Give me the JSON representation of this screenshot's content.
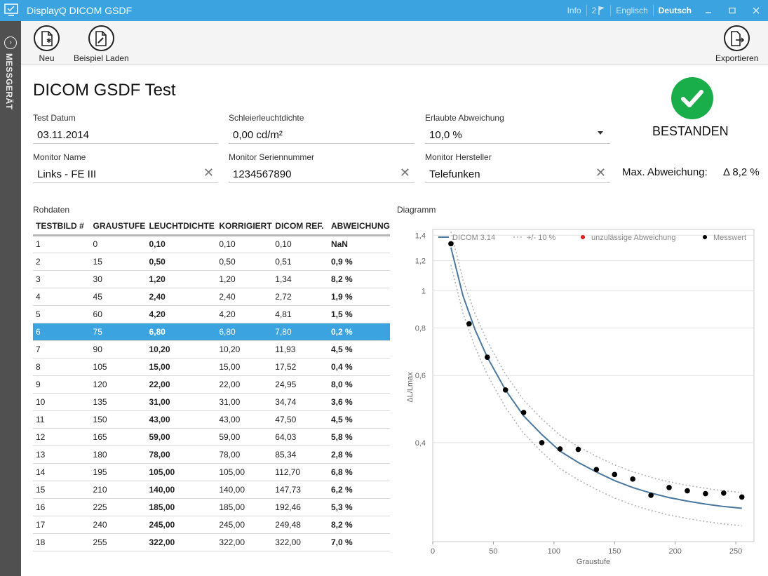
{
  "app": {
    "title": "DisplayQ DICOM GSDF",
    "links": {
      "info": "Info",
      "flag_count": "2",
      "lang_en": "Englisch",
      "lang_de": "Deutsch"
    }
  },
  "sidebar": {
    "label": "MESSGERÄT"
  },
  "toolbar": {
    "new_label": "Neu",
    "load_example_label": "Beispiel Laden",
    "export_label": "Exportieren"
  },
  "page": {
    "title": "DICOM GSDF Test"
  },
  "fields": {
    "test_date": {
      "label": "Test Datum",
      "value": "03.11.2014"
    },
    "veiling_luminance": {
      "label": "Schleierleuchtdichte",
      "value": "0,00 cd/m²"
    },
    "allowed_deviation": {
      "label": "Erlaubte Abweichung",
      "value": "10,0 %"
    },
    "monitor_name": {
      "label": "Monitor Name",
      "value": "Links - FE III"
    },
    "monitor_serial": {
      "label": "Monitor Seriennummer",
      "value": "1234567890"
    },
    "monitor_manufacturer": {
      "label": "Monitor Hersteller",
      "value": "Telefunken"
    }
  },
  "result": {
    "status": "BESTANDEN",
    "status_color": "#1aae4b",
    "max_dev_label": "Max. Abweichung:",
    "max_dev_value": "Δ 8,2 %"
  },
  "raw": {
    "section_label": "Rohdaten",
    "columns": [
      "TESTBILD #",
      "GRAUSTUFE",
      "LEUCHTDICHTE",
      "KORRIGIERT",
      "DICOM REF.",
      "ABWEICHUNG"
    ],
    "selected_row": 5,
    "rows": [
      [
        "1",
        "0",
        "0,10",
        "0,10",
        "0,10",
        "NaN"
      ],
      [
        "2",
        "15",
        "0,50",
        "0,50",
        "0,51",
        "0,9 %"
      ],
      [
        "3",
        "30",
        "1,20",
        "1,20",
        "1,34",
        "8,2 %"
      ],
      [
        "4",
        "45",
        "2,40",
        "2,40",
        "2,72",
        "1,9 %"
      ],
      [
        "5",
        "60",
        "4,20",
        "4,20",
        "4,81",
        "1,5 %"
      ],
      [
        "6",
        "75",
        "6,80",
        "6,80",
        "7,80",
        "0,2 %"
      ],
      [
        "7",
        "90",
        "10,20",
        "10,20",
        "11,93",
        "4,5 %"
      ],
      [
        "8",
        "105",
        "15,00",
        "15,00",
        "17,52",
        "0,4 %"
      ],
      [
        "9",
        "120",
        "22,00",
        "22,00",
        "24,95",
        "8,0 %"
      ],
      [
        "10",
        "135",
        "31,00",
        "31,00",
        "34,74",
        "3,6 %"
      ],
      [
        "11",
        "150",
        "43,00",
        "43,00",
        "47,50",
        "4,5 %"
      ],
      [
        "12",
        "165",
        "59,00",
        "59,00",
        "64,03",
        "5,8 %"
      ],
      [
        "13",
        "180",
        "78,00",
        "78,00",
        "85,34",
        "2,8 %"
      ],
      [
        "14",
        "195",
        "105,00",
        "105,00",
        "112,70",
        "6,8 %"
      ],
      [
        "15",
        "210",
        "140,00",
        "140,00",
        "147,73",
        "6,2 %"
      ],
      [
        "16",
        "225",
        "185,00",
        "185,00",
        "192,46",
        "5,3 %"
      ],
      [
        "17",
        "240",
        "245,00",
        "245,00",
        "249,48",
        "8,2 %"
      ],
      [
        "18",
        "255",
        "322,00",
        "322,00",
        "322,00",
        "7,0 %"
      ]
    ]
  },
  "diagram": {
    "section_label": "Diagramm"
  },
  "chart_data": {
    "type": "scatter",
    "xlabel": "Graustufe",
    "ylabel": "ΔL/Lmax",
    "xlim": [
      0,
      265
    ],
    "ylim": [
      0.22,
      1.45
    ],
    "y_scale": "log",
    "x_ticks": [
      "0",
      "50",
      "100",
      "150",
      "200",
      "250"
    ],
    "y_ticks": [
      "1,4",
      "1,2",
      "1",
      "0,8",
      "0,6",
      "0,4"
    ],
    "legend": [
      "DICOM 3.14",
      "+/- 10 %",
      "unzulässige Abweichung",
      "Messwert"
    ],
    "legend_placement": "top",
    "colors": {
      "dicom": "#4a78a0",
      "tolerance": "#b4b4b4",
      "invalid": "#e0201a",
      "measured": "#000000"
    },
    "series": [
      {
        "name": "Messwert",
        "x": [
          15,
          30,
          45,
          60,
          75,
          90,
          105,
          120,
          135,
          150,
          165,
          180,
          195,
          210,
          225,
          240,
          255
        ],
        "y": [
          1.33,
          0.82,
          0.67,
          0.55,
          0.48,
          0.4,
          0.385,
          0.384,
          0.34,
          0.33,
          0.321,
          0.291,
          0.305,
          0.299,
          0.294,
          0.295,
          0.288
        ]
      },
      {
        "name": "DICOM 3.14",
        "x": [
          15,
          25,
          35,
          45,
          60,
          75,
          90,
          105,
          120,
          135,
          150,
          165,
          180,
          195,
          210,
          225,
          240,
          255
        ],
        "y": [
          1.3,
          0.97,
          0.79,
          0.67,
          0.55,
          0.47,
          0.42,
          0.38,
          0.355,
          0.335,
          0.318,
          0.305,
          0.295,
          0.287,
          0.281,
          0.276,
          0.272,
          0.269
        ]
      }
    ]
  }
}
